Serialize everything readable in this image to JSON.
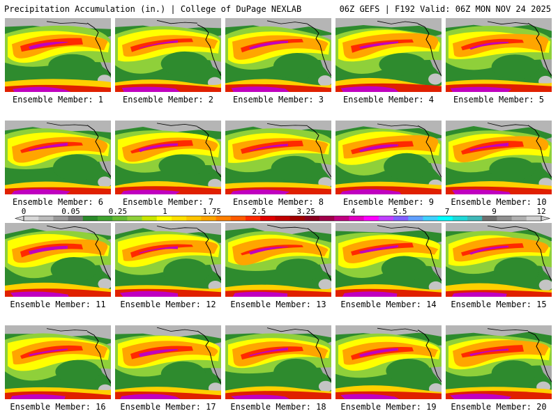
{
  "header": {
    "left": "Precipitation Accumulation (in.) | College of DuPage NEXLAB",
    "right": "06Z GEFS | F192 Valid: 06Z MON NOV 24 2025"
  },
  "panels": [
    {
      "label": "Ensemble Member: 1"
    },
    {
      "label": "Ensemble Member: 2"
    },
    {
      "label": "Ensemble Member: 3"
    },
    {
      "label": "Ensemble Member: 4"
    },
    {
      "label": "Ensemble Member: 5"
    },
    {
      "label": "Ensemble Member: 6"
    },
    {
      "label": "Ensemble Member: 7"
    },
    {
      "label": "Ensemble Member: 8"
    },
    {
      "label": "Ensemble Member: 9"
    },
    {
      "label": "Ensemble Member: 10"
    },
    {
      "label": "Ensemble Member: 11"
    },
    {
      "label": "Ensemble Member: 12"
    },
    {
      "label": "Ensemble Member: 13"
    },
    {
      "label": "Ensemble Member: 14"
    },
    {
      "label": "Ensemble Member: 15"
    },
    {
      "label": "Ensemble Member: 16"
    },
    {
      "label": "Ensemble Member: 17"
    },
    {
      "label": "Ensemble Member: 18"
    },
    {
      "label": "Ensemble Member: 19"
    },
    {
      "label": "Ensemble Member: 20"
    }
  ],
  "colorbar": {
    "labels": [
      "0",
      "0.05",
      "0.25",
      "1",
      "1.75",
      "2.5",
      "3.25",
      "4",
      "5.5",
      "7",
      "9",
      "12"
    ],
    "colors": [
      "#d8d8d8",
      "#bcbcbc",
      "#9a9a9a",
      "#7a7a7a",
      "#2a8a2a",
      "#3fa32f",
      "#66bb33",
      "#8fd03a",
      "#c8e600",
      "#ffff00",
      "#ffe000",
      "#ffc400",
      "#ffa500",
      "#ff7f00",
      "#ff5a00",
      "#ff2a00",
      "#e00000",
      "#c00000",
      "#a00000",
      "#8a0020",
      "#a0004a",
      "#c00080",
      "#e000c0",
      "#ff00ff",
      "#c040ff",
      "#8060ff",
      "#60a0ff",
      "#40d0ff",
      "#00ffff",
      "#20d8d8",
      "#40b8b8",
      "#707070",
      "#909090",
      "#b0b0b0",
      "#d0d0d0"
    ]
  }
}
